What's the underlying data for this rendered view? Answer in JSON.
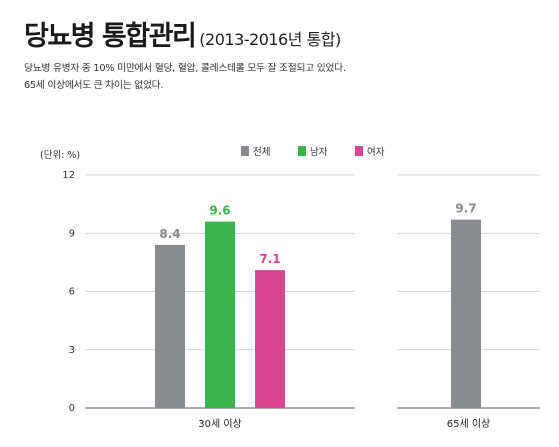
{
  "header": {
    "title": "당뇨병 통합관리",
    "subtitle": "(2013-2016년 통합)",
    "description": [
      "당뇨병 유병자 중 10% 미만에서 혈당, 혈압, 콜레스테롤 모두 잘 조절되고 있었다.",
      "65세 이상에서도 큰 차이는 없었다."
    ]
  },
  "chart_data": {
    "type": "bar",
    "unit_label": "(단위: %)",
    "ylim": [
      0,
      12
    ],
    "yticks": [
      0,
      3,
      6,
      9,
      12
    ],
    "grid": true,
    "legend_position": "top-right",
    "legend": [
      {
        "name": "전체",
        "color": "#898a8d"
      },
      {
        "name": "남자",
        "color": "#3cb44b"
      },
      {
        "name": "여자",
        "color": "#d9458f"
      }
    ],
    "groups": [
      {
        "category": "30세 이상",
        "bars": [
          {
            "series": "전체",
            "value": 8.4,
            "label": "8.4",
            "color": "#898a8d"
          },
          {
            "series": "남자",
            "value": 9.6,
            "label": "9.6",
            "color": "#3cb44b"
          },
          {
            "series": "여자",
            "value": 7.1,
            "label": "7.1",
            "color": "#d9458f"
          }
        ]
      },
      {
        "category": "65세 이상",
        "bars": [
          {
            "series": "전체",
            "value": 9.7,
            "label": "9.7",
            "color": "#898a8d"
          }
        ]
      }
    ]
  }
}
